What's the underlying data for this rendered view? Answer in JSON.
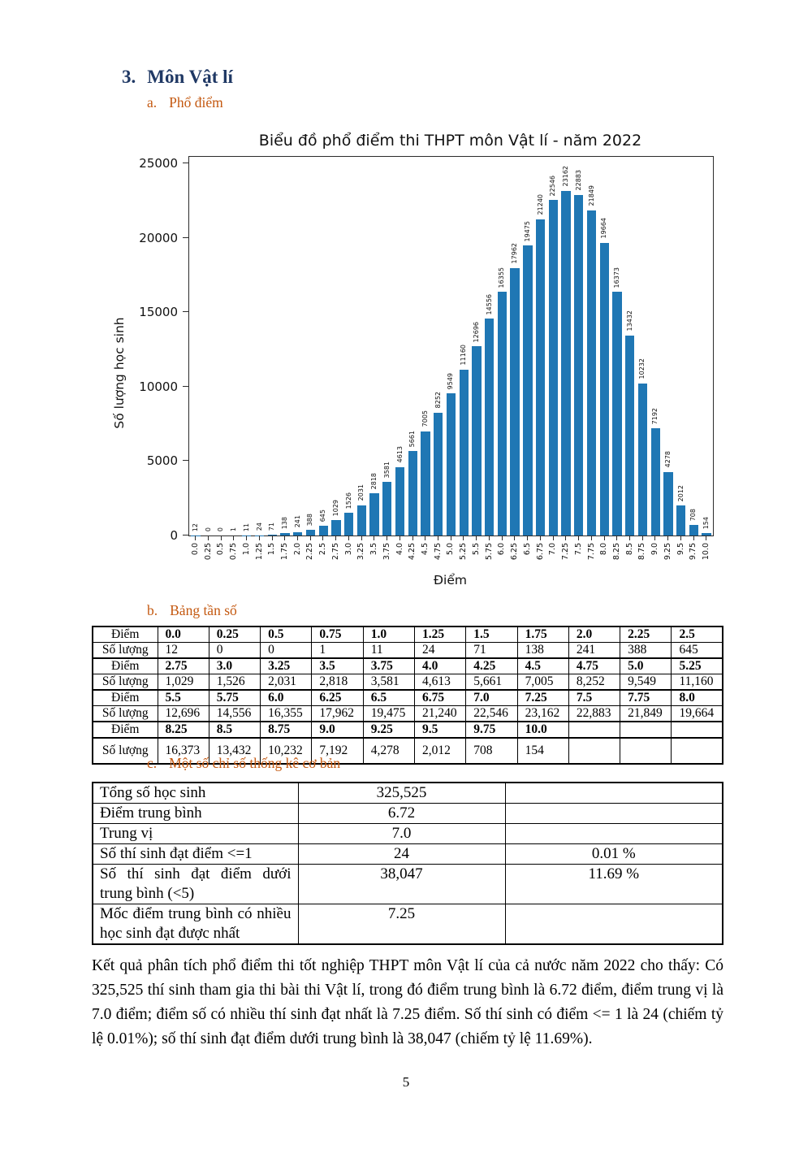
{
  "headings": {
    "section_number": "3.",
    "section_title": "Môn Vật lí",
    "sub_a_number": "a.",
    "sub_a_title": "Phổ điểm",
    "sub_b_number": "b.",
    "sub_b_title": "Bảng tần số",
    "sub_c_number": "c.",
    "sub_c_title": "Một số chỉ số thống kê cơ bản"
  },
  "chart_data": {
    "type": "bar",
    "title": "Biểu đồ phổ điểm thi THPT môn Vật lí - năm 2022",
    "xlabel": "Điểm",
    "ylabel": "Số lượng học sinh",
    "ylim": [
      0,
      25000
    ],
    "yticks": [
      0,
      5000,
      10000,
      15000,
      20000,
      25000
    ],
    "grid": false,
    "legend": "none",
    "bar_color": "#1f77b4",
    "categories": [
      "0.0",
      "0.25",
      "0.5",
      "0.75",
      "1.0",
      "1.25",
      "1.5",
      "1.75",
      "2.0",
      "2.25",
      "2.5",
      "2.75",
      "3.0",
      "3.25",
      "3.5",
      "3.75",
      "4.0",
      "4.25",
      "4.5",
      "4.75",
      "5.0",
      "5.25",
      "5.5",
      "5.75",
      "6.0",
      "6.25",
      "6.5",
      "6.75",
      "7.0",
      "7.25",
      "7.5",
      "7.75",
      "8.0",
      "8.25",
      "8.5",
      "8.75",
      "9.0",
      "9.25",
      "9.5",
      "9.75",
      "10.0"
    ],
    "values": [
      12,
      0,
      0,
      1,
      11,
      24,
      71,
      138,
      241,
      388,
      645,
      1029,
      1526,
      2031,
      2818,
      3581,
      4613,
      5661,
      7005,
      8252,
      9549,
      11160,
      12696,
      14556,
      16355,
      17962,
      19475,
      21240,
      22546,
      23162,
      22883,
      21849,
      19664,
      16373,
      13432,
      10232,
      7192,
      4278,
      2012,
      708,
      154
    ]
  },
  "freq_table": {
    "row_label_diem": "Điểm",
    "row_label_soluong": "Số lượng",
    "groups": [
      {
        "diem": [
          "0.0",
          "0.25",
          "0.5",
          "0.75",
          "1.0",
          "1.25",
          "1.5",
          "1.75",
          "2.0",
          "2.25",
          "2.5"
        ],
        "soluong": [
          "12",
          "0",
          "0",
          "1",
          "11",
          "24",
          "71",
          "138",
          "241",
          "388",
          "645"
        ]
      },
      {
        "diem": [
          "2.75",
          "3.0",
          "3.25",
          "3.5",
          "3.75",
          "4.0",
          "4.25",
          "4.5",
          "4.75",
          "5.0",
          "5.25"
        ],
        "soluong": [
          "1,029",
          "1,526",
          "2,031",
          "2,818",
          "3,581",
          "4,613",
          "5,661",
          "7,005",
          "8,252",
          "9,549",
          "11,160"
        ]
      },
      {
        "diem": [
          "5.5",
          "5.75",
          "6.0",
          "6.25",
          "6.5",
          "6.75",
          "7.0",
          "7.25",
          "7.5",
          "7.75",
          "8.0"
        ],
        "soluong": [
          "12,696",
          "14,556",
          "16,355",
          "17,962",
          "19,475",
          "21,240",
          "22,546",
          "23,162",
          "22,883",
          "21,849",
          "19,664"
        ]
      },
      {
        "diem": [
          "8.25",
          "8.5",
          "8.75",
          "9.0",
          "9.25",
          "9.5",
          "9.75",
          "10.0",
          "",
          "",
          ""
        ],
        "soluong": [
          "16,373",
          "13,432",
          "10,232",
          "7,192",
          "4,278",
          "2,012",
          "708",
          "154",
          "",
          "",
          ""
        ]
      }
    ]
  },
  "stats_table": {
    "rows": [
      {
        "label": "Tổng số học sinh",
        "value": "325,525",
        "percent": ""
      },
      {
        "label": "Điểm trung bình",
        "value": "6.72",
        "percent": ""
      },
      {
        "label": "Trung vị",
        "value": "7.0",
        "percent": ""
      },
      {
        "label": "Số thí sinh đạt điểm <=1",
        "value": "24",
        "percent": "0.01 %"
      },
      {
        "label": "Số thí sinh đạt điểm dưới trung bình (<5)",
        "value": "38,047",
        "percent": "11.69 %"
      },
      {
        "label": "Mốc điểm trung bình có nhiều học sinh đạt được nhất",
        "value": "7.25",
        "percent": ""
      }
    ]
  },
  "conclusion": "Kết quả phân tích phổ điểm thi tốt nghiệp THPT môn Vật lí của cả nước năm 2022 cho thấy: Có 325,525 thí sinh tham gia thi bài thi Vật lí, trong đó điểm trung bình là 6.72 điểm, điểm trung vị là 7.0 điểm; điểm số có nhiều thí sinh đạt nhất là 7.25 điểm. Số thí sinh có điểm <= 1 là 24 (chiếm tỷ lệ 0.01%); số thí sinh đạt điểm dưới trung bình là 38,047 (chiếm tỷ lệ 11.69%).",
  "page_number": "5",
  "colors": {
    "heading_navy": "#1f3864",
    "heading_orange": "#c45911",
    "bar_blue": "#1f77b4"
  }
}
